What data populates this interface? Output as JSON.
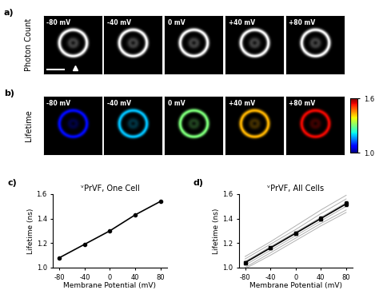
{
  "image_panels": {
    "rows": [
      {
        "label": "a)",
        "title": "Photon Count",
        "images": [
          "-80 mV",
          "-40 mV",
          "0 mV",
          "+40 mV",
          "+80 mV"
        ]
      },
      {
        "label": "b)",
        "title": "Lifetime",
        "images": [
          "-80 mV",
          "-40 mV",
          "0 mV",
          "+40 mV",
          "+80 mV"
        ],
        "colorbar": {
          "range": [
            1.0,
            1.6
          ],
          "ticks": [
            {
              "value": 1.0,
              "label": "1.0"
            },
            1.6
          ]
        }
      }
    ]
  },
  "chart_data": [
    {
      "type": "line",
      "label": "c)",
      "title": "ᵛPrVF, One Cell",
      "x_label": "Membrane Potential (mV)",
      "y_label": "Lifetime (ns)",
      "x": [
        -80,
        -40,
        0,
        40,
        80
      ],
      "values": [
        1.08,
        1.19,
        1.3,
        1.43,
        1.54
      ],
      "color": "#000000",
      "marker": "circle",
      "xlim": [
        -90,
        90
      ],
      "xticks": [
        -80,
        -40,
        0,
        40,
        80
      ],
      "ylim": [
        1.0,
        1.6
      ],
      "yticks": [
        {
          "value": 1.0,
          "label": "1.0"
        },
        1.2,
        1.4,
        1.6
      ]
    },
    {
      "type": "line",
      "label": "d)",
      "title": "ᵛPrVF, All Cells",
      "x_label": "Membrane Potential (mV)",
      "y_label": "Lifetime (ns)",
      "x": [
        -80,
        -40,
        0,
        40,
        80
      ],
      "values": [
        1.04,
        1.16,
        1.28,
        1.4,
        1.52
      ],
      "errors": [
        0.012,
        0.012,
        0.015,
        0.015,
        0.018
      ],
      "color": "#000000",
      "marker": "square",
      "cells": [
        [
          1.0,
          1.12,
          1.24,
          1.36,
          1.47
        ],
        [
          1.02,
          1.14,
          1.26,
          1.38,
          1.5
        ],
        [
          1.05,
          1.17,
          1.29,
          1.41,
          1.53
        ],
        [
          1.07,
          1.19,
          1.31,
          1.44,
          1.56
        ],
        [
          1.09,
          1.21,
          1.34,
          1.47,
          1.59
        ],
        [
          0.99,
          1.1,
          1.22,
          1.34,
          1.45
        ]
      ],
      "cells_color": "#b0b0b0",
      "xlim": [
        -90,
        90
      ],
      "xticks": [
        -80,
        -40,
        0,
        40,
        80
      ],
      "ylim": [
        1.0,
        1.6
      ],
      "yticks": [
        {
          "value": 1.0,
          "label": "1.0"
        },
        1.2,
        1.4,
        1.6
      ]
    }
  ]
}
